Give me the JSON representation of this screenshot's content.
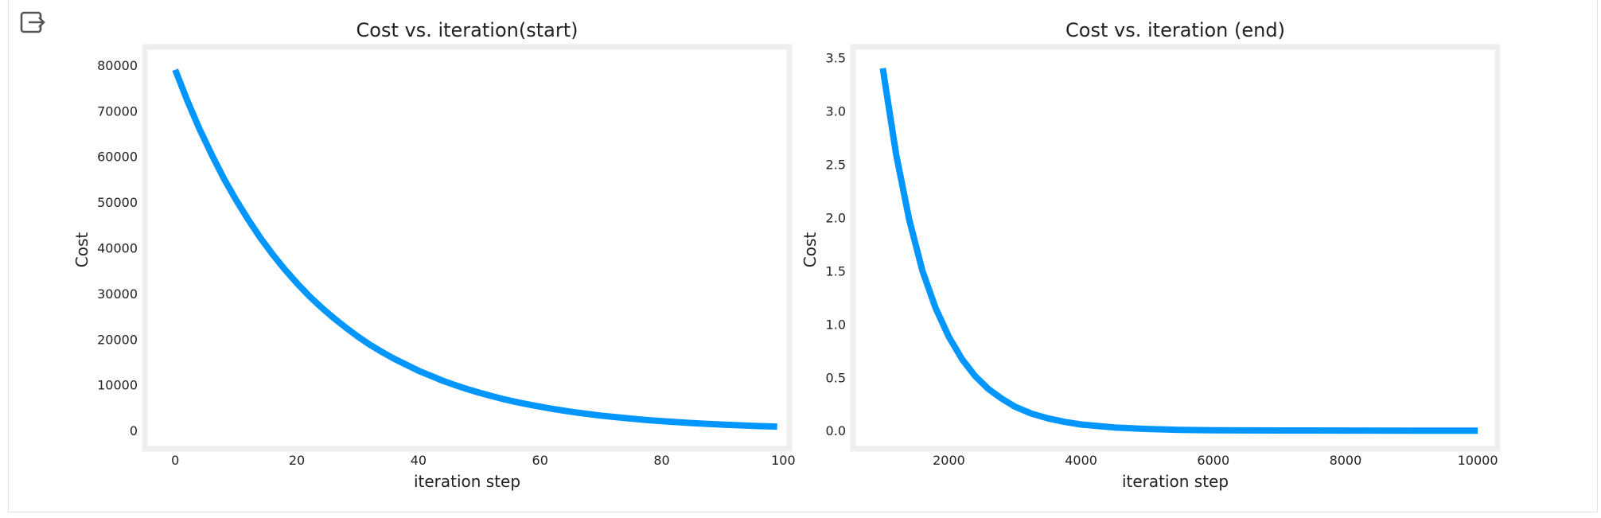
{
  "colors": {
    "line": "#0096ff",
    "frame": "#eeeeee",
    "text": "#222222"
  },
  "output_icon": "output-expand-icon",
  "chart_data": [
    {
      "type": "line",
      "title": "Cost vs. iteration(start)",
      "xlabel": "iteration step",
      "ylabel": "Cost",
      "xlim": [
        -5,
        101
      ],
      "ylim": [
        -4000,
        84000
      ],
      "xticks": [
        0,
        20,
        40,
        60,
        80,
        100
      ],
      "yticks": [
        0,
        10000,
        20000,
        30000,
        40000,
        50000,
        60000,
        70000,
        80000
      ],
      "grid": false,
      "series": [
        {
          "x": [
            0,
            2,
            4,
            6,
            8,
            10,
            12,
            14,
            16,
            18,
            20,
            22,
            24,
            26,
            28,
            30,
            32,
            34,
            36,
            38,
            40,
            42,
            44,
            46,
            48,
            50,
            52,
            54,
            56,
            58,
            60,
            62,
            64,
            66,
            68,
            70,
            72,
            74,
            76,
            78,
            80,
            82,
            84,
            86,
            88,
            90,
            92,
            94,
            96,
            98,
            99
          ],
          "y": [
            79000,
            72200,
            66000,
            60400,
            55200,
            50500,
            46200,
            42200,
            38600,
            35300,
            32300,
            29500,
            27000,
            24700,
            22600,
            20600,
            18800,
            17200,
            15700,
            14400,
            13100,
            12000,
            10900,
            9950,
            9080,
            8280,
            7550,
            6880,
            6270,
            5720,
            5210,
            4750,
            4330,
            3940,
            3590,
            3270,
            2980,
            2720,
            2480,
            2260,
            2060,
            1870,
            1710,
            1560,
            1420,
            1290,
            1180,
            1070,
            975,
            890,
            850
          ]
        }
      ]
    },
    {
      "type": "line",
      "title": "Cost vs. iteration (end)",
      "xlabel": "iteration step",
      "ylabel": "Cost",
      "xlim": [
        550,
        10300
      ],
      "ylim": [
        -0.17,
        3.6
      ],
      "xticks": [
        2000,
        4000,
        6000,
        8000,
        10000
      ],
      "yticks": [
        0.0,
        0.5,
        1.0,
        1.5,
        2.0,
        2.5,
        3.0,
        3.5
      ],
      "ytick_labels": [
        "0.0",
        "0.5",
        "1.0",
        "1.5",
        "2.0",
        "2.5",
        "3.0",
        "3.5"
      ],
      "grid": false,
      "series": [
        {
          "x": [
            1000,
            1200,
            1400,
            1600,
            1800,
            2000,
            2200,
            2400,
            2600,
            2800,
            3000,
            3250,
            3500,
            3750,
            4000,
            4500,
            5000,
            5500,
            6000,
            7000,
            8000,
            9000,
            10000
          ],
          "y": [
            3.4,
            2.6,
            1.98,
            1.5,
            1.15,
            0.88,
            0.67,
            0.51,
            0.39,
            0.3,
            0.225,
            0.16,
            0.115,
            0.082,
            0.058,
            0.03,
            0.016,
            0.008,
            0.004,
            0.002,
            0.001,
            0.0005,
            0.0003
          ]
        }
      ]
    }
  ]
}
